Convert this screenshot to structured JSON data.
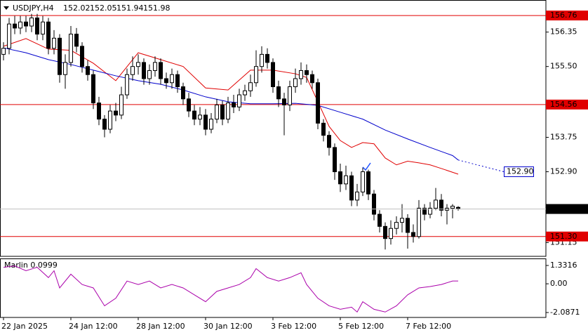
{
  "chart_data": [
    {
      "type": "candlestick",
      "symbol": "USDJPY,H4",
      "categories": [
        "22 Jan 2025",
        null,
        null,
        null,
        null,
        null,
        null,
        null,
        null,
        null,
        null,
        null,
        "24 Jan 12:00",
        null,
        null,
        null,
        null,
        null,
        null,
        null,
        null,
        null,
        null,
        null,
        "28 Jan 12:00",
        null,
        null,
        null,
        null,
        null,
        null,
        null,
        null,
        null,
        null,
        null,
        "30 Jan 12:00",
        null,
        null,
        null,
        null,
        null,
        null,
        null,
        null,
        null,
        null,
        null,
        "3 Feb 12:00",
        null,
        null,
        null,
        null,
        null,
        null,
        null,
        null,
        null,
        null,
        null,
        "5 Feb 12:00",
        null,
        null,
        null,
        null,
        null,
        null,
        null,
        null,
        null,
        null,
        null,
        "7 Feb 12:00",
        null,
        null,
        null,
        null,
        null,
        null,
        null,
        null,
        null
      ],
      "values": [
        [
          155.8,
          156.1,
          155.65,
          155.95
        ],
        [
          155.95,
          156.7,
          155.8,
          156.55
        ],
        [
          156.55,
          156.75,
          156.3,
          156.45
        ],
        [
          156.45,
          156.75,
          156.3,
          156.6
        ],
        [
          156.6,
          156.75,
          156.35,
          156.5
        ],
        [
          156.5,
          156.8,
          156.35,
          156.7
        ],
        [
          156.7,
          156.8,
          156.15,
          156.3
        ],
        [
          156.3,
          156.75,
          156.15,
          156.6
        ],
        [
          156.6,
          156.7,
          155.8,
          155.95
        ],
        [
          155.95,
          156.4,
          155.8,
          156.2
        ],
        [
          156.2,
          156.3,
          155.1,
          155.3
        ],
        [
          155.3,
          155.8,
          154.95,
          155.6
        ],
        [
          155.6,
          156.5,
          155.5,
          156.3
        ],
        [
          156.3,
          156.45,
          155.85,
          156.0
        ],
        [
          156.0,
          156.1,
          155.35,
          155.5
        ],
        [
          155.5,
          155.65,
          155.15,
          155.3
        ],
        [
          155.3,
          155.4,
          154.45,
          154.6
        ],
        [
          154.6,
          154.75,
          154.05,
          154.2
        ],
        [
          154.2,
          154.3,
          153.75,
          153.95
        ],
        [
          153.95,
          154.55,
          153.85,
          154.4
        ],
        [
          154.4,
          154.6,
          154.15,
          154.3
        ],
        [
          154.3,
          155.0,
          154.2,
          154.8
        ],
        [
          154.8,
          155.45,
          154.7,
          155.3
        ],
        [
          155.3,
          155.75,
          155.15,
          155.5
        ],
        [
          155.5,
          155.8,
          155.3,
          155.6
        ],
        [
          155.6,
          155.7,
          155.05,
          155.2
        ],
        [
          155.2,
          155.55,
          155.05,
          155.4
        ],
        [
          155.4,
          155.75,
          155.25,
          155.6
        ],
        [
          155.6,
          155.7,
          155.05,
          155.2
        ],
        [
          155.2,
          155.35,
          154.95,
          155.1
        ],
        [
          155.1,
          155.45,
          154.95,
          155.3
        ],
        [
          155.3,
          155.4,
          154.85,
          155.0
        ],
        [
          155.0,
          155.1,
          154.55,
          154.7
        ],
        [
          154.7,
          154.85,
          154.25,
          154.4
        ],
        [
          154.4,
          154.55,
          154.05,
          154.2
        ],
        [
          154.2,
          154.5,
          154.05,
          154.3
        ],
        [
          154.3,
          154.45,
          153.8,
          153.95
        ],
        [
          153.95,
          154.35,
          153.85,
          154.2
        ],
        [
          154.2,
          154.7,
          154.1,
          154.55
        ],
        [
          154.55,
          154.65,
          154.05,
          154.2
        ],
        [
          154.2,
          154.75,
          154.1,
          154.6
        ],
        [
          154.6,
          154.8,
          154.35,
          154.5
        ],
        [
          154.5,
          154.95,
          154.4,
          154.8
        ],
        [
          154.8,
          155.05,
          154.65,
          154.9
        ],
        [
          154.9,
          155.3,
          154.75,
          155.1
        ],
        [
          155.1,
          155.9,
          155.0,
          155.5
        ],
        [
          155.5,
          156.0,
          155.35,
          155.8
        ],
        [
          155.8,
          155.95,
          155.45,
          155.6
        ],
        [
          155.6,
          155.7,
          154.85,
          155.0
        ],
        [
          155.0,
          155.15,
          154.5,
          154.7
        ],
        [
          154.7,
          154.85,
          153.8,
          154.55
        ],
        [
          154.55,
          155.15,
          154.4,
          155.0
        ],
        [
          155.0,
          155.45,
          154.85,
          155.2
        ],
        [
          155.2,
          155.6,
          155.05,
          155.4
        ],
        [
          155.4,
          155.55,
          155.1,
          155.3
        ],
        [
          155.3,
          155.4,
          154.95,
          155.1
        ],
        [
          155.1,
          155.2,
          153.95,
          154.1
        ],
        [
          154.1,
          154.2,
          153.65,
          153.8
        ],
        [
          153.8,
          153.9,
          153.3,
          153.5
        ],
        [
          153.5,
          153.6,
          152.7,
          152.9
        ],
        [
          152.9,
          153.1,
          152.4,
          152.6
        ],
        [
          152.6,
          153.05,
          152.45,
          152.8
        ],
        [
          152.8,
          152.9,
          152.05,
          152.2
        ],
        [
          152.2,
          152.6,
          152.05,
          152.4
        ],
        [
          152.4,
          153.0,
          152.3,
          152.9
        ],
        [
          152.9,
          152.95,
          152.2,
          152.35
        ],
        [
          152.35,
          152.45,
          151.7,
          151.85
        ],
        [
          151.85,
          151.95,
          151.4,
          151.55
        ],
        [
          151.55,
          151.65,
          150.98,
          151.25
        ],
        [
          151.25,
          151.7,
          151.1,
          151.5
        ],
        [
          151.5,
          151.8,
          151.35,
          151.65
        ],
        [
          151.65,
          152.1,
          151.4,
          151.75
        ],
        [
          151.75,
          151.85,
          151.0,
          151.4
        ],
        [
          151.4,
          151.6,
          151.15,
          151.3
        ],
        [
          151.3,
          152.2,
          151.25,
          152.0
        ],
        [
          152.0,
          152.1,
          151.7,
          151.85
        ],
        [
          151.85,
          152.15,
          151.75,
          152.0
        ],
        [
          152.0,
          152.5,
          151.95,
          152.2
        ],
        [
          152.2,
          152.35,
          151.8,
          151.95
        ],
        [
          151.95,
          152.1,
          151.6,
          152.0
        ],
        [
          152.0,
          152.1,
          151.75,
          152.05
        ],
        [
          152.02,
          152.05,
          151.94,
          151.98
        ]
      ],
      "ylim": [
        150.81,
        156.9
      ],
      "yticks": [
        156.35,
        {
          "value": 155.5,
          "label": "155.50"
        },
        153.75,
        {
          "value": 152.9,
          "label": "152.90"
        },
        151.15
      ],
      "lines": [
        {
          "color": "#e00000",
          "x": [
            0,
            4,
            8,
            12,
            16,
            20,
            24,
            28,
            32,
            36,
            40,
            44,
            48,
            52,
            54,
            56,
            58,
            60,
            62,
            64,
            66,
            68,
            70,
            72,
            74,
            76,
            78,
            81
          ],
          "values": [
            156.0,
            156.19,
            155.93,
            155.9,
            155.58,
            155.15,
            155.84,
            155.67,
            155.5,
            154.97,
            154.92,
            155.41,
            155.41,
            155.32,
            155.23,
            154.63,
            154.02,
            153.67,
            153.5,
            153.62,
            153.59,
            153.24,
            153.07,
            153.16,
            153.12,
            153.07,
            152.98,
            152.84
          ]
        },
        {
          "color": "#0000cc",
          "x": [
            0,
            4,
            8,
            12,
            16,
            20,
            24,
            28,
            32,
            36,
            40,
            44,
            48,
            52,
            56,
            60,
            64,
            68,
            72,
            76,
            80,
            81
          ],
          "values": [
            155.96,
            155.84,
            155.67,
            155.55,
            155.41,
            155.27,
            155.15,
            155.06,
            154.92,
            154.75,
            154.63,
            154.58,
            154.58,
            154.59,
            154.54,
            154.37,
            154.2,
            153.93,
            153.71,
            153.5,
            153.3,
            153.19
          ]
        }
      ],
      "levels": [
        156.76,
        154.56,
        {
          "value": 151.3,
          "label": "151.30"
        }
      ],
      "level_color": "#e00000",
      "projection": {
        "value": 152.9,
        "label": "152.90"
      },
      "projection_color": "#0000cc"
    },
    {
      "type": "line",
      "title": "Marlin 0.0999",
      "color": "#aa00aa",
      "x": [
        0,
        2,
        4,
        6,
        8,
        9,
        10,
        12,
        14,
        16,
        18,
        20,
        22,
        24,
        26,
        28,
        30,
        32,
        34,
        36,
        38,
        40,
        42,
        44,
        45,
        47,
        49,
        51,
        53,
        54,
        56,
        58,
        60,
        62,
        63,
        64,
        66,
        68,
        70,
        72,
        74,
        76,
        78,
        80,
        81
      ],
      "values": [
        1.2,
        1.3,
        0.95,
        1.2,
        0.45,
        0.95,
        -0.3,
        0.7,
        -0.05,
        -0.3,
        -1.6,
        -1.05,
        0.2,
        -0.05,
        0.2,
        -0.3,
        -0.05,
        -0.3,
        -0.8,
        -1.3,
        -0.55,
        -0.3,
        -0.05,
        0.45,
        1.1,
        0.45,
        0.2,
        0.45,
        0.8,
        -0.05,
        -1.05,
        -1.6,
        -1.85,
        -1.7,
        -2.05,
        -1.3,
        -1.85,
        -2.05,
        -1.6,
        -0.8,
        -0.3,
        -0.2,
        -0.05,
        0.2,
        0.2
      ],
      "ylim": [
        -2.0871,
        1.3316
      ],
      "yticks": [
        1.3316,
        {
          "value": 0,
          "label": "0.00"
        },
        -2.0871
      ]
    }
  ]
}
